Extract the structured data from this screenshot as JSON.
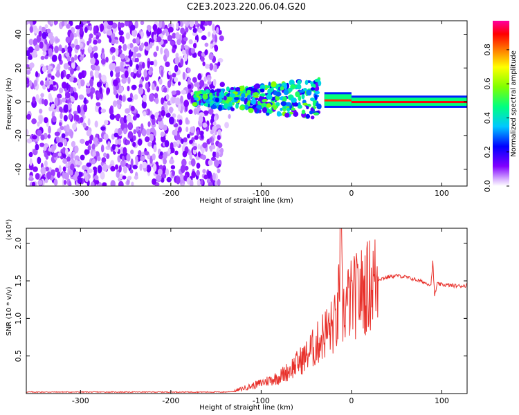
{
  "title": "C2E3.2023.220.06.04.G20",
  "chart_data": [
    {
      "type": "heatmap",
      "xlabel": "Height of straight line (km)",
      "ylabel": "Frequency (Hz)",
      "xlim": [
        -360,
        128
      ],
      "ylim": [
        -50,
        48
      ],
      "x_ticks": [
        -300,
        -200,
        -100,
        0,
        100
      ],
      "y_ticks": [
        -40,
        -20,
        0,
        20,
        40
      ],
      "grid": false,
      "colorbar": {
        "label": "Normalized spectral amplitude",
        "range": [
          0,
          0.97
        ],
        "ticks": [
          "0.0",
          "0.2",
          "0.4",
          "0.6",
          "0.8"
        ],
        "colormap": [
          "#ffffff",
          "#8000ff",
          "#0000ff",
          "#00c8ff",
          "#00ff80",
          "#80ff00",
          "#ffff00",
          "#ff8000",
          "#ff0000",
          "#ff00a0"
        ]
      },
      "regions": [
        {
          "x_range": [
            -360,
            -145
          ],
          "freq_range": [
            -50,
            48
          ],
          "amplitude": 0.1,
          "description": "broadband noise"
        },
        {
          "x_range": [
            -175,
            -35
          ],
          "freq_range": [
            -12,
            12
          ],
          "amplitude": 0.35
        },
        {
          "x_range": [
            -30,
            0
          ],
          "freq_range": [
            -2,
            4
          ],
          "amplitude": 0.85
        },
        {
          "x_range": [
            0,
            128
          ],
          "freq_range": [
            -2,
            2
          ],
          "amplitude": 0.9
        }
      ]
    },
    {
      "type": "line",
      "xlabel": "Height of straight line (km)",
      "ylabel": "SNR (10 * v/v)",
      "y_multiplier": "(x10⁴)",
      "xlim": [
        -360,
        128
      ],
      "ylim": [
        0,
        2.2
      ],
      "x_ticks": [
        -300,
        -200,
        -100,
        0,
        100
      ],
      "y_ticks": [
        "0.5",
        "1.0",
        "1.5",
        "2.0"
      ],
      "grid": false,
      "color": "#e8302a",
      "series": [
        {
          "x": [
            -360,
            -340,
            -320,
            -300,
            -280,
            -260,
            -240,
            -220,
            -200,
            -180,
            -160,
            -140,
            -130,
            -120,
            -110,
            -100,
            -90,
            -80,
            -70,
            -60,
            -50,
            -45,
            -40,
            -35,
            -30,
            -25,
            -20,
            -15,
            -12,
            -10,
            -5,
            0,
            5,
            10,
            15,
            20,
            25,
            30,
            40,
            50,
            60,
            70,
            80,
            88,
            90,
            92,
            95,
            100,
            110,
            120,
            128
          ],
          "y": [
            0.02,
            0.02,
            0.02,
            0.02,
            0.02,
            0.02,
            0.02,
            0.02,
            0.02,
            0.02,
            0.02,
            0.02,
            0.03,
            0.07,
            0.1,
            0.14,
            0.18,
            0.22,
            0.3,
            0.4,
            0.5,
            0.58,
            0.62,
            0.72,
            0.8,
            0.85,
            0.9,
            0.98,
            2.15,
            1.05,
            1.2,
            1.25,
            1.3,
            1.35,
            1.38,
            1.45,
            1.5,
            1.52,
            1.55,
            1.57,
            1.55,
            1.52,
            1.48,
            1.45,
            1.75,
            1.3,
            1.46,
            1.45,
            1.44,
            1.43,
            1.44
          ]
        }
      ]
    }
  ]
}
